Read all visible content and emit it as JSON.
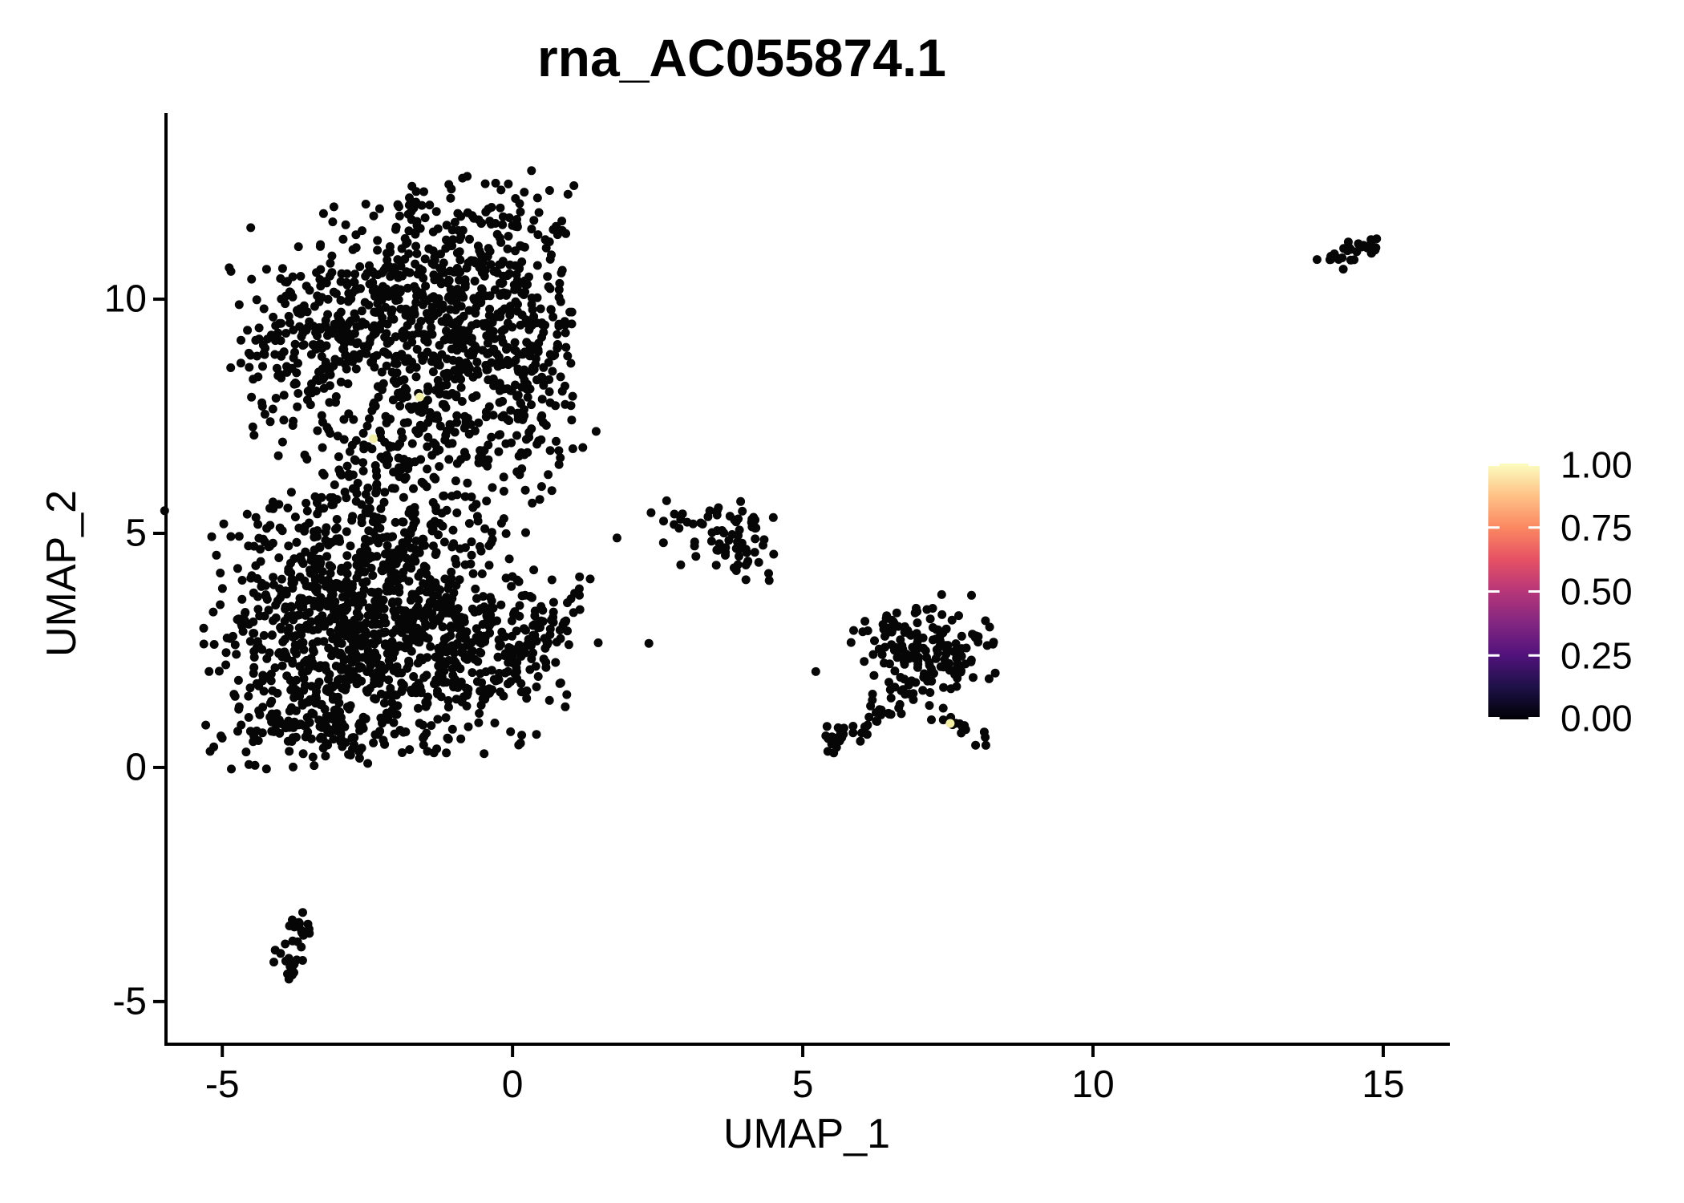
{
  "chart_data": {
    "type": "scatter",
    "title": "rna_AC055874.1",
    "xlabel": "UMAP_1",
    "ylabel": "UMAP_2",
    "x_ticks": [
      -5,
      0,
      5,
      10,
      15
    ],
    "y_ticks": [
      -5,
      0,
      5,
      10
    ],
    "xlim": [
      -5.97,
      16.12
    ],
    "ylim": [
      -5.91,
      13.94
    ],
    "grid": false,
    "background": "#ffffff",
    "axis_color": "#000000",
    "point_color": "#060606",
    "highlight_color": "#f3f0a6",
    "point_radius_px": 5.5,
    "seed": 1337,
    "legend": {
      "labels": [
        "1.00",
        "0.75",
        "0.50",
        "0.25",
        "0.00"
      ],
      "values": [
        1.0,
        0.75,
        0.5,
        0.25,
        0.0
      ],
      "colormap": "magma",
      "gradient_stops": [
        [
          "#000004",
          0.0
        ],
        [
          "#1d1147",
          0.125
        ],
        [
          "#51127c",
          0.25
        ],
        [
          "#822681",
          0.375
        ],
        [
          "#b63679",
          0.5
        ],
        [
          "#e65164",
          0.625
        ],
        [
          "#fb8861",
          0.75
        ],
        [
          "#fec287",
          0.875
        ],
        [
          "#fcfdbf",
          1.0
        ]
      ],
      "position": "right"
    },
    "highlighted_points": [
      {
        "x": -1.6,
        "y": 7.91,
        "value": 1.0
      },
      {
        "x": -2.4,
        "y": 7.02,
        "value": 1.0
      },
      {
        "x": 7.54,
        "y": 0.94,
        "value": 1.0
      }
    ],
    "clusters": [
      {
        "id": "top-peak",
        "kind": "gaussian",
        "cx": -0.75,
        "cy": 11.4,
        "sx": 1.0,
        "sy": 0.62,
        "n": 150,
        "clip": {
          "xmin": -3.2,
          "xmax": 1.1,
          "ymax": 12.85
        }
      },
      {
        "id": "top-upper-left",
        "kind": "gaussian",
        "cx": -2.55,
        "cy": 9.95,
        "sx": 1.0,
        "sy": 0.72,
        "n": 220,
        "clip": {
          "xmin": -4.95
        }
      },
      {
        "id": "top-upper-right",
        "kind": "gaussian",
        "cx": -0.35,
        "cy": 9.8,
        "sx": 0.85,
        "sy": 0.72,
        "n": 200,
        "clip": {
          "xmax": 1.05
        }
      },
      {
        "id": "top-mid",
        "kind": "gaussian",
        "cx": -1.6,
        "cy": 8.6,
        "sx": 1.3,
        "sy": 0.75,
        "n": 260,
        "clip": {
          "xmin": -4.9,
          "xmax": 1.1
        }
      },
      {
        "id": "top-left-arm",
        "kind": "gaussian",
        "cx": -3.65,
        "cy": 8.6,
        "sx": 0.55,
        "sy": 0.8,
        "n": 90,
        "clip": {
          "xmin": -4.95
        }
      },
      {
        "id": "top-lower-neck",
        "kind": "gaussian",
        "cx": -0.9,
        "cy": 7.05,
        "sx": 1.05,
        "sy": 0.7,
        "n": 170
      },
      {
        "id": "top-right-edge",
        "kind": "gaussian",
        "cx": 0.35,
        "cy": 8.6,
        "sx": 0.45,
        "sy": 0.8,
        "n": 50,
        "clip": {
          "xmax": 1.1
        }
      },
      {
        "id": "top-bottom-bridge",
        "kind": "gaussian",
        "cx": -2.7,
        "cy": 6.3,
        "sx": 0.55,
        "sy": 0.5,
        "n": 60
      },
      {
        "id": "bl-left-dense",
        "kind": "gaussian",
        "cx": -3.5,
        "cy": 3.0,
        "sx": 0.85,
        "sy": 1.15,
        "n": 400,
        "clip": {
          "xmin": -5.35,
          "ymin": -0.05
        }
      },
      {
        "id": "bl-center",
        "kind": "gaussian",
        "cx": -1.95,
        "cy": 2.65,
        "sx": 0.95,
        "sy": 1.0,
        "n": 370,
        "clip": {
          "ymin": -0.05
        }
      },
      {
        "id": "bl-upper",
        "kind": "gaussian",
        "cx": -2.35,
        "cy": 4.85,
        "sx": 1.1,
        "sy": 0.6,
        "n": 210
      },
      {
        "id": "bl-right",
        "kind": "gaussian",
        "cx": -0.55,
        "cy": 2.7,
        "sx": 0.72,
        "sy": 0.92,
        "n": 180,
        "clip": {
          "ymin": 0.0
        }
      },
      {
        "id": "bl-right-tail",
        "kind": "gaussian",
        "cx": 0.55,
        "cy": 2.65,
        "sx": 0.5,
        "sy": 0.68,
        "n": 70,
        "clip": {
          "xmax": 1.65
        }
      },
      {
        "id": "bl-bottom-edge",
        "kind": "gaussian",
        "cx": -3.3,
        "cy": 0.85,
        "sx": 0.9,
        "sy": 0.45,
        "n": 130,
        "clip": {
          "xmin": -5.3,
          "ymin": -0.05
        }
      },
      {
        "id": "mid-small",
        "kind": "gaussian",
        "cx": 3.6,
        "cy": 5.0,
        "sx": 0.48,
        "sy": 0.42,
        "n": 60,
        "clip": {
          "xmax": 4.7,
          "ymax": 5.95
        }
      },
      {
        "id": "mid-small-lower",
        "kind": "gaussian",
        "cx": 4.05,
        "cy": 4.3,
        "sx": 0.3,
        "sy": 0.28,
        "n": 14
      },
      {
        "id": "stragglers",
        "kind": "points",
        "pts": [
          [
            2.6,
            4.8
          ],
          [
            2.35,
            2.65
          ],
          [
            1.8,
            4.9
          ]
        ]
      },
      {
        "id": "right-main",
        "kind": "gaussian",
        "cx": 7.3,
        "cy": 2.55,
        "sx": 0.5,
        "sy": 0.55,
        "n": 115,
        "clip": {
          "xmax": 8.6,
          "ymax": 3.75
        }
      },
      {
        "id": "right-left-lobe",
        "kind": "gaussian",
        "cx": 6.55,
        "cy": 2.85,
        "sx": 0.3,
        "sy": 0.27,
        "n": 35
      },
      {
        "id": "right-tail",
        "kind": "line",
        "x1": 5.45,
        "y1": 0.45,
        "x2": 6.6,
        "y2": 1.28,
        "jx": 0.12,
        "jy": 0.12,
        "n": 40
      },
      {
        "id": "right-mid-sparse",
        "kind": "gaussian",
        "cx": 6.75,
        "cy": 1.7,
        "sx": 0.45,
        "sy": 0.38,
        "n": 22
      },
      {
        "id": "right-bottom-arm",
        "kind": "line",
        "x1": 7.42,
        "y1": 1.02,
        "x2": 8.1,
        "y2": 0.62,
        "jx": 0.09,
        "jy": 0.09,
        "n": 14
      },
      {
        "id": "far-right",
        "kind": "line",
        "x1": 14.08,
        "y1": 10.88,
        "x2": 15.0,
        "y2": 11.2,
        "jx": 0.12,
        "jy": 0.09,
        "n": 30
      },
      {
        "id": "bottom-small",
        "kind": "line",
        "x1": -3.6,
        "y1": -3.12,
        "x2": -3.92,
        "y2": -4.3,
        "jx": 0.1,
        "jy": 0.1,
        "n": 24
      },
      {
        "id": "bottom-small-blob",
        "kind": "gaussian",
        "cx": -3.82,
        "cy": -4.28,
        "sx": 0.13,
        "sy": 0.16,
        "n": 9
      }
    ]
  }
}
